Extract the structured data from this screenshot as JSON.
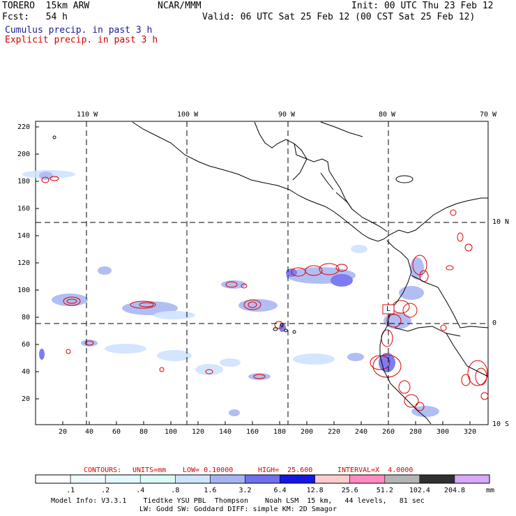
{
  "header": {
    "model": "TORERO  15km ARW",
    "org": "NCAR/MMM",
    "init": "Init: 00 UTC Thu 23 Feb 12",
    "fcst": "Fcst:   54 h",
    "valid": "Valid: 06 UTC Sat 25 Feb 12 (00 CST Sat 25 Feb 12)",
    "field1": "Cumulus precip. in past 3 h",
    "field2": "Explicit precip. in past 3 h"
  },
  "map": {
    "lon_labels": [
      "110 W",
      "100 W",
      "90 W",
      "80 W",
      "70 W"
    ],
    "lat_labels": [
      "10 N",
      "0",
      "10 S"
    ],
    "y_ticks": [
      "220",
      "200",
      "180",
      "160",
      "140",
      "120",
      "100",
      "80",
      "60",
      "40",
      "20"
    ],
    "x_ticks": [
      "20",
      "40",
      "60",
      "80",
      "100",
      "120",
      "140",
      "160",
      "180",
      "200",
      "220",
      "240",
      "260",
      "280",
      "300",
      "320"
    ],
    "box_label": "L"
  },
  "contours_info": {
    "label": "CONTOURS:",
    "units": "UNITS=mm",
    "low": "LOW= 0.10000",
    "high": "HIGH=  25.600",
    "interval": "INTERVAL=X  4.0000"
  },
  "colorbar": {
    "levels": [
      ".1",
      ".2",
      ".4",
      ".8",
      "1.6",
      "3.2",
      "6.4",
      "12.8",
      "25.6",
      "51.2",
      "102.4",
      "204.8"
    ],
    "units": "mm",
    "colors": [
      "#ffffff",
      "#f0fbff",
      "#e4f8ff",
      "#dcfaf6",
      "#cfe3ff",
      "#a7b4f4",
      "#6f6ff0",
      "#1515e6",
      "#ffcccc",
      "#ff8ac4",
      "#b4b4b4",
      "#303030",
      "#d8a8ff"
    ]
  },
  "footer": {
    "line1": "Model Info: V3.3.1    Tiedtke YSU PBL  Thompson    Noah LSM  15 km,   44 levels,   81 sec",
    "line2": "LW: Godd SW: Goddard DIFF: simple KM: 2D Smagor"
  }
}
